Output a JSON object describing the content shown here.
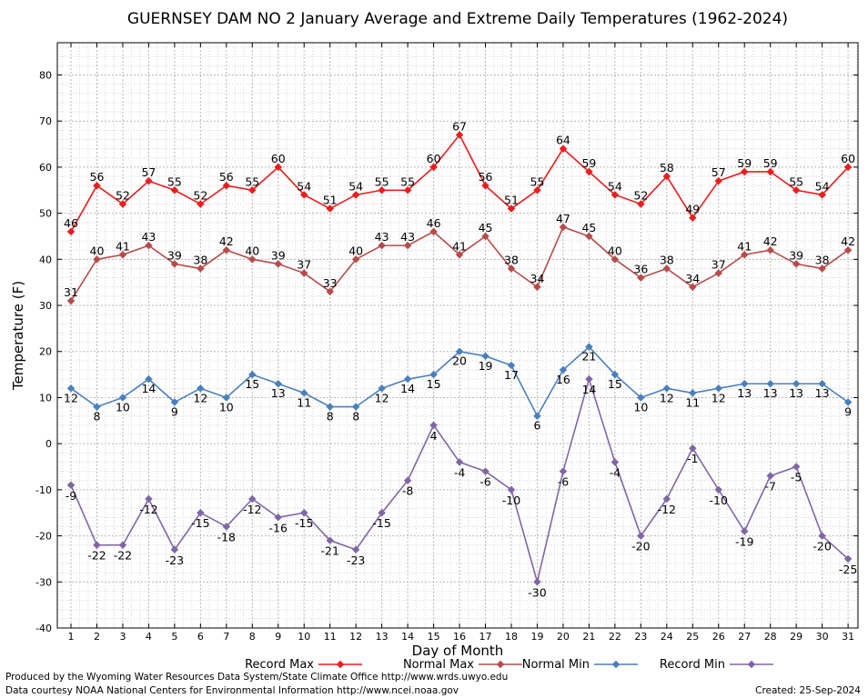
{
  "chart_data": {
    "type": "line",
    "title": "GUERNSEY DAM NO 2 January Average and Extreme Daily Temperatures (1962-2024)",
    "xlabel": "Day of Month",
    "ylabel": "Temperature (F)",
    "ylim": [
      -40,
      87
    ],
    "yticks": [
      -40,
      -30,
      -20,
      -10,
      0,
      10,
      20,
      30,
      40,
      50,
      60,
      70,
      80
    ],
    "grid": true,
    "legend_placement": "bottom",
    "x": [
      1,
      2,
      3,
      4,
      5,
      6,
      7,
      8,
      9,
      10,
      11,
      12,
      13,
      14,
      15,
      16,
      17,
      18,
      19,
      20,
      21,
      22,
      23,
      24,
      25,
      26,
      27,
      28,
      29,
      30,
      31
    ],
    "series": [
      {
        "name": "Record Max",
        "color": "#ee1c1c",
        "values": [
          46,
          56,
          52,
          57,
          55,
          52,
          56,
          55,
          60,
          54,
          51,
          54,
          55,
          55,
          60,
          67,
          56,
          51,
          55,
          64,
          59,
          54,
          52,
          58,
          49,
          57,
          59,
          59,
          55,
          54,
          60
        ]
      },
      {
        "name": "Normal Max",
        "color": "#b84a4a",
        "values": [
          31,
          40,
          41,
          43,
          39,
          38,
          42,
          40,
          39,
          37,
          33,
          40,
          43,
          43,
          46,
          41,
          45,
          38,
          34,
          47,
          45,
          40,
          36,
          38,
          34,
          37,
          41,
          42,
          39,
          38,
          42
        ]
      },
      {
        "name": "Normal Min",
        "color": "#4a7fbf",
        "values": [
          12,
          8,
          10,
          14,
          9,
          12,
          10,
          15,
          13,
          11,
          8,
          8,
          12,
          14,
          15,
          20,
          19,
          17,
          6,
          16,
          21,
          15,
          10,
          12,
          11,
          12,
          13,
          13,
          13,
          13,
          9
        ]
      },
      {
        "name": "Record Min",
        "color": "#8066a6",
        "values": [
          -9,
          -22,
          -22,
          -12,
          -23,
          -15,
          -18,
          -12,
          -16,
          -15,
          -21,
          -23,
          -15,
          -8,
          4,
          -4,
          -6,
          -10,
          -30,
          -6,
          14,
          -4,
          -20,
          -12,
          -1,
          -10,
          -19,
          -7,
          -5,
          -20,
          -25
        ]
      }
    ]
  },
  "footer": {
    "produced_by": "Produced by the Wyoming Water Resources Data System/State Climate Office http://www.wrds.uwyo.edu",
    "data_courtesy": "Data courtesy NOAA National Centers for Environmental Information http://www.ncei.noaa.gov",
    "created": "Created:  25-Sep-2024"
  }
}
